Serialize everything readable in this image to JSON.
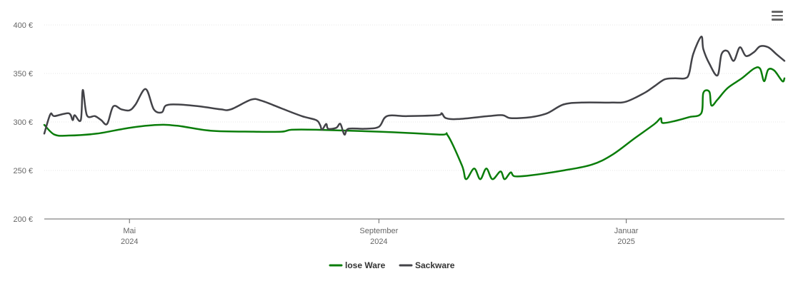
{
  "menu": {
    "icon": "hamburger-menu-icon"
  },
  "chart_data": {
    "type": "line",
    "title": "",
    "xlabel": "",
    "ylabel": "",
    "ylim": [
      200,
      400
    ],
    "x_range": [
      "2024-03-20",
      "2025-03-20"
    ],
    "y_ticks": [
      {
        "value": 200,
        "label": "200 €"
      },
      {
        "value": 250,
        "label": "250 €"
      },
      {
        "value": 300,
        "label": "300 €"
      },
      {
        "value": 350,
        "label": "350 €"
      },
      {
        "value": 400,
        "label": "400 €"
      }
    ],
    "x_ticks": [
      {
        "date": "2024-05-01",
        "label": "Mai",
        "sublabel": "2024"
      },
      {
        "date": "2024-09-01",
        "label": "September",
        "sublabel": "2024"
      },
      {
        "date": "2025-01-01",
        "label": "Januar",
        "sublabel": "2025"
      }
    ],
    "grid": true,
    "legend_position": "bottom-center",
    "series": [
      {
        "name": "lose Ware",
        "color": "#0a7d0a",
        "points": [
          [
            "2024-03-20",
            297
          ],
          [
            "2024-03-25",
            287
          ],
          [
            "2024-04-01",
            286
          ],
          [
            "2024-04-15",
            288
          ],
          [
            "2024-05-01",
            294
          ],
          [
            "2024-05-15",
            297
          ],
          [
            "2024-05-25",
            296
          ],
          [
            "2024-06-10",
            291
          ],
          [
            "2024-07-01",
            290
          ],
          [
            "2024-07-15",
            290
          ],
          [
            "2024-07-20",
            292
          ],
          [
            "2024-08-01",
            292
          ],
          [
            "2024-09-01",
            290
          ],
          [
            "2024-10-01",
            287
          ],
          [
            "2024-10-05",
            286
          ],
          [
            "2024-10-12",
            255
          ],
          [
            "2024-10-14",
            241
          ],
          [
            "2024-10-18",
            252
          ],
          [
            "2024-10-21",
            241
          ],
          [
            "2024-10-24",
            252
          ],
          [
            "2024-10-27",
            241
          ],
          [
            "2024-10-31",
            249
          ],
          [
            "2024-11-02",
            241
          ],
          [
            "2024-11-05",
            248
          ],
          [
            "2024-11-07",
            244
          ],
          [
            "2024-11-15",
            245
          ],
          [
            "2024-12-01",
            250
          ],
          [
            "2024-12-15",
            256
          ],
          [
            "2024-12-25",
            266
          ],
          [
            "2025-01-05",
            283
          ],
          [
            "2025-01-15",
            298
          ],
          [
            "2025-01-18",
            304
          ],
          [
            "2025-01-19",
            299
          ],
          [
            "2025-01-25",
            301
          ],
          [
            "2025-02-01",
            305
          ],
          [
            "2025-02-07",
            309
          ],
          [
            "2025-02-08",
            330
          ],
          [
            "2025-02-11",
            331
          ],
          [
            "2025-02-12",
            317
          ],
          [
            "2025-02-15",
            323
          ],
          [
            "2025-02-20",
            335
          ],
          [
            "2025-02-27",
            345
          ],
          [
            "2025-03-05",
            355
          ],
          [
            "2025-03-08",
            355
          ],
          [
            "2025-03-10",
            342
          ],
          [
            "2025-03-12",
            354
          ],
          [
            "2025-03-15",
            353
          ],
          [
            "2025-03-19",
            342
          ],
          [
            "2025-03-20",
            345
          ]
        ]
      },
      {
        "name": "Sackware",
        "color": "#434348",
        "points": [
          [
            "2024-03-20",
            288
          ],
          [
            "2024-03-23",
            308
          ],
          [
            "2024-03-25",
            306
          ],
          [
            "2024-04-01",
            309
          ],
          [
            "2024-04-03",
            302
          ],
          [
            "2024-04-04",
            307
          ],
          [
            "2024-04-07",
            302
          ],
          [
            "2024-04-08",
            333
          ],
          [
            "2024-04-10",
            307
          ],
          [
            "2024-04-14",
            306
          ],
          [
            "2024-04-17",
            302
          ],
          [
            "2024-04-20",
            298
          ],
          [
            "2024-04-23",
            316
          ],
          [
            "2024-04-27",
            313
          ],
          [
            "2024-05-01",
            312
          ],
          [
            "2024-05-04",
            318
          ],
          [
            "2024-05-09",
            334
          ],
          [
            "2024-05-13",
            313
          ],
          [
            "2024-05-17",
            310
          ],
          [
            "2024-05-19",
            317
          ],
          [
            "2024-05-25",
            318
          ],
          [
            "2024-06-05",
            316
          ],
          [
            "2024-06-15",
            313
          ],
          [
            "2024-06-20",
            313
          ],
          [
            "2024-06-30",
            323
          ],
          [
            "2024-07-05",
            322
          ],
          [
            "2024-07-15",
            314
          ],
          [
            "2024-07-25",
            306
          ],
          [
            "2024-08-01",
            302
          ],
          [
            "2024-08-03",
            297
          ],
          [
            "2024-08-04",
            292
          ],
          [
            "2024-08-06",
            298
          ],
          [
            "2024-08-07",
            293
          ],
          [
            "2024-08-11",
            294
          ],
          [
            "2024-08-13",
            298
          ],
          [
            "2024-08-15",
            287
          ],
          [
            "2024-08-17",
            293
          ],
          [
            "2024-08-25",
            293
          ],
          [
            "2024-09-01",
            295
          ],
          [
            "2024-09-05",
            306
          ],
          [
            "2024-09-15",
            306
          ],
          [
            "2024-09-30",
            307
          ],
          [
            "2024-10-02",
            309
          ],
          [
            "2024-10-04",
            304
          ],
          [
            "2024-10-10",
            303
          ],
          [
            "2024-10-25",
            306
          ],
          [
            "2024-11-01",
            307
          ],
          [
            "2024-11-05",
            304
          ],
          [
            "2024-11-15",
            305
          ],
          [
            "2024-11-23",
            309
          ],
          [
            "2024-12-01",
            318
          ],
          [
            "2024-12-10",
            320
          ],
          [
            "2024-12-25",
            320
          ],
          [
            "2025-01-01",
            321
          ],
          [
            "2025-01-10",
            330
          ],
          [
            "2025-01-15",
            337
          ],
          [
            "2025-01-20",
            344
          ],
          [
            "2025-01-25",
            345
          ],
          [
            "2025-01-30",
            345
          ],
          [
            "2025-02-01",
            350
          ],
          [
            "2025-02-03",
            370
          ],
          [
            "2025-02-07",
            388
          ],
          [
            "2025-02-08",
            375
          ],
          [
            "2025-02-11",
            360
          ],
          [
            "2025-02-15",
            348
          ],
          [
            "2025-02-17",
            370
          ],
          [
            "2025-02-20",
            373
          ],
          [
            "2025-02-23",
            363
          ],
          [
            "2025-02-26",
            377
          ],
          [
            "2025-03-01",
            368
          ],
          [
            "2025-03-05",
            372
          ],
          [
            "2025-03-08",
            378
          ],
          [
            "2025-03-12",
            377
          ],
          [
            "2025-03-16",
            370
          ],
          [
            "2025-03-20",
            363
          ]
        ]
      }
    ]
  }
}
